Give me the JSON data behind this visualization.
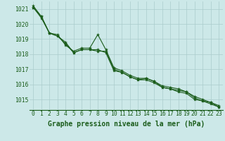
{
  "title": "Graphe pression niveau de la mer (hPa)",
  "bg_color": "#cce8e8",
  "grid_color": "#aacccc",
  "line_color": "#1a5c1a",
  "xlim": [
    -0.5,
    23.5
  ],
  "ylim": [
    1014.3,
    1021.5
  ],
  "yticks": [
    1015,
    1016,
    1017,
    1018,
    1019,
    1020,
    1021
  ],
  "xticks": [
    0,
    1,
    2,
    3,
    4,
    5,
    6,
    7,
    8,
    9,
    10,
    11,
    12,
    13,
    14,
    15,
    16,
    17,
    18,
    19,
    20,
    21,
    22,
    23
  ],
  "series": [
    [
      1021.2,
      1020.5,
      1019.4,
      1019.3,
      1018.6,
      1018.2,
      1018.4,
      1018.4,
      1019.3,
      1018.3,
      1017.1,
      1016.9,
      1016.6,
      1016.4,
      1016.4,
      1016.2,
      1015.9,
      1015.8,
      1015.7,
      1015.5,
      1015.2,
      1015.0,
      1014.8,
      1014.5
    ],
    [
      1021.1,
      1020.5,
      1019.4,
      1019.2,
      1018.8,
      1018.1,
      1018.3,
      1018.3,
      1018.2,
      1018.2,
      1017.0,
      1016.8,
      1016.5,
      1016.3,
      1016.4,
      1016.2,
      1015.8,
      1015.7,
      1015.6,
      1015.5,
      1015.1,
      1014.9,
      1014.8,
      1014.6
    ],
    [
      1021.1,
      1020.4,
      1019.4,
      1019.2,
      1018.7,
      1018.1,
      1018.3,
      1018.3,
      1018.3,
      1018.1,
      1016.9,
      1016.8,
      1016.5,
      1016.3,
      1016.3,
      1016.1,
      1015.8,
      1015.7,
      1015.5,
      1015.4,
      1015.0,
      1014.9,
      1014.7,
      1014.5
    ]
  ],
  "tick_fontsize": 5.8,
  "label_fontsize": 7.0
}
